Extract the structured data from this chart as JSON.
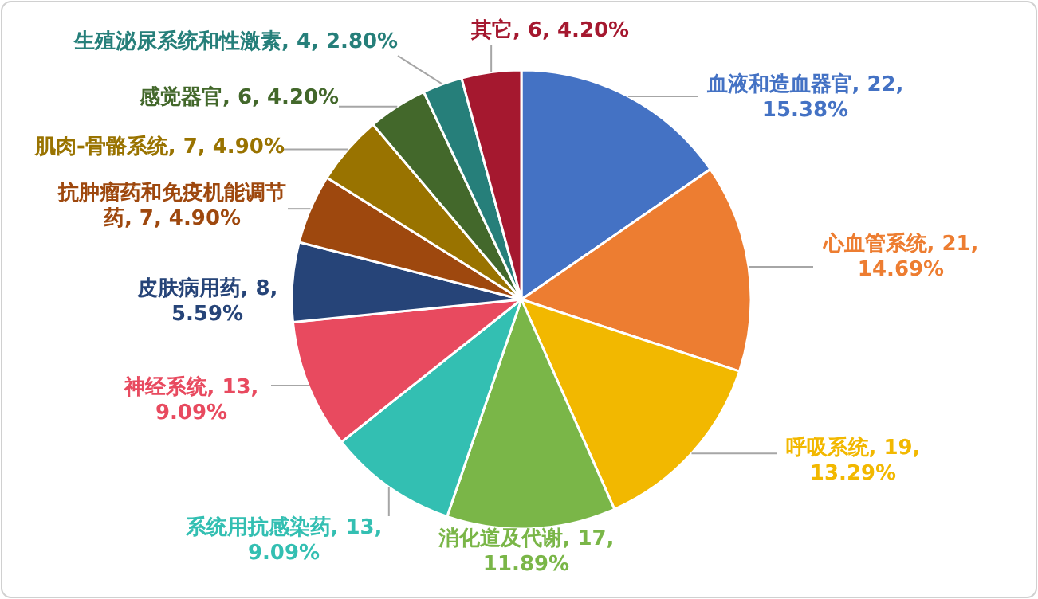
{
  "chart_data": {
    "type": "pie",
    "categories": [
      "血液和造血器官",
      "心血管系统",
      "呼吸系统",
      "消化道及代谢",
      "系统用抗感染药",
      "神经系统",
      "皮肤病用药",
      "抗肿瘤药和免疫机能调节药",
      "肌肉-骨骼系统",
      "感觉器官",
      "生殖泌尿系统和性激素",
      "其它"
    ],
    "values": [
      22,
      21,
      19,
      17,
      13,
      13,
      8,
      7,
      7,
      6,
      4,
      6
    ],
    "value_labels": [
      "22, 15.38%",
      "21, 14.69%",
      "19, 13.29%",
      "17, 11.89%",
      "13, 9.09%",
      "13, 9.09%",
      "8, 5.59%",
      "7, 4.90%",
      "7, 4.90%",
      "6, 4.20%",
      "4, 2.80%",
      "6, 4.20%"
    ],
    "colors": [
      "#4472c4",
      "#ed7d31",
      "#f2b800",
      "#7ab648",
      "#33bfb2",
      "#e84a5f",
      "#264478",
      "#9e480e",
      "#997300",
      "#43682b",
      "#267f7a",
      "#a5182f"
    ]
  }
}
